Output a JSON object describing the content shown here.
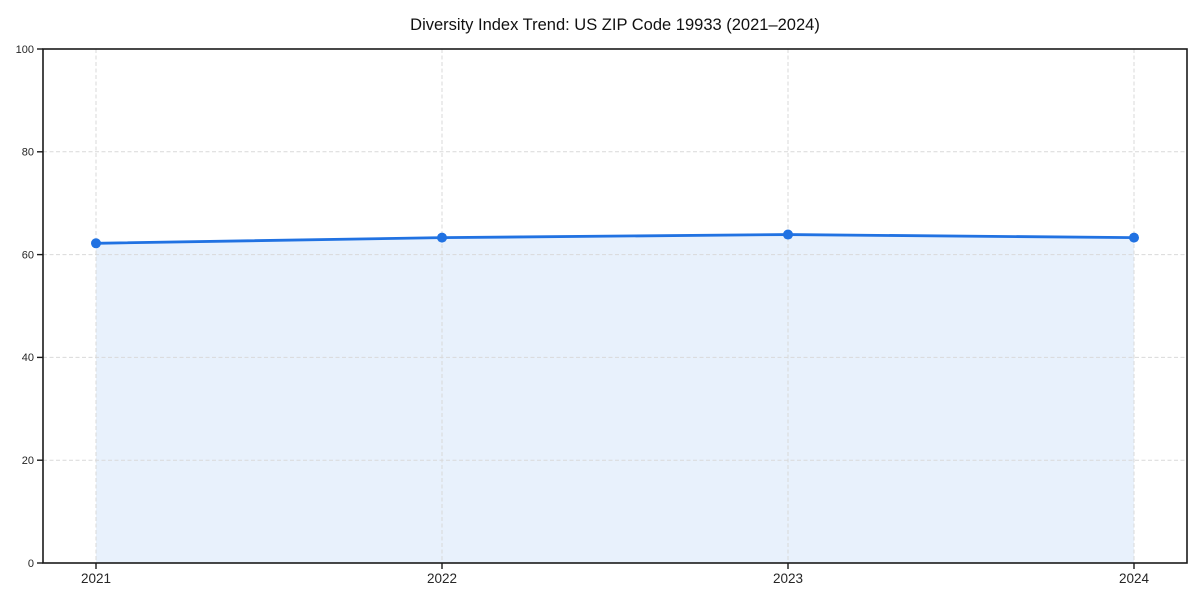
{
  "chart_data": {
    "type": "area",
    "title": "Diversity Index Trend: US ZIP Code 19933 (2021–2024)",
    "categories": [
      "2021",
      "2022",
      "2023",
      "2024"
    ],
    "series": [
      {
        "name": "Diversity Index",
        "values": [
          62.2,
          63.3,
          63.9,
          63.3
        ]
      }
    ],
    "ylim": [
      0,
      100
    ],
    "yticks": [
      0,
      20,
      40,
      60,
      80,
      100
    ],
    "grid": true,
    "legend_position": "none",
    "marker": "circle",
    "colors": {
      "line": "#2172e2",
      "marker": "#2172e2",
      "fill": "rgba(33,114,226,0.10)",
      "grid": "#d9d9d9",
      "spine": "#1a1a1a",
      "tick_label": "#262626",
      "title": "#111111",
      "background": "#ffffff"
    }
  }
}
